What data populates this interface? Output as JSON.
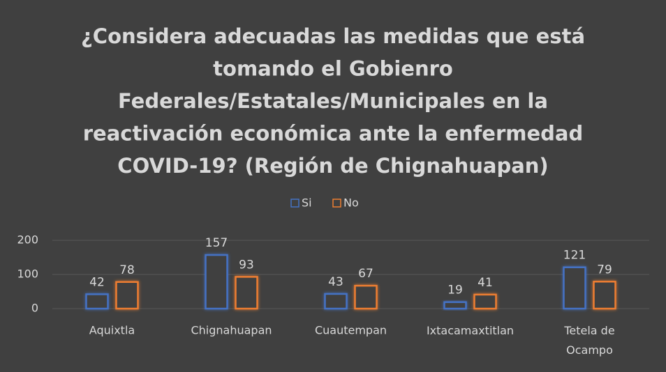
{
  "chart_data": {
    "type": "bar",
    "title": [
      "¿Considera adecuadas las medidas que está",
      "tomando el Gobienro",
      "Federales/Estatales/Municipales en la",
      "reactivación económica ante la enfermedad",
      "COVID-19? (Región de Chignahuapan)"
    ],
    "categories": [
      "Aquixtla",
      "Chignahuapan",
      "Cuautempan",
      "Ixtacamaxtitlan",
      "Tetela de Ocampo"
    ],
    "series": [
      {
        "name": "Si",
        "color": "#4472c4",
        "values": [
          42,
          157,
          43,
          19,
          121
        ]
      },
      {
        "name": "No",
        "color": "#ed7d31",
        "values": [
          78,
          93,
          67,
          41,
          79
        ]
      }
    ],
    "ylim": [
      0,
      200
    ],
    "yticks": [
      0,
      100,
      200
    ],
    "grid": true,
    "legend": "top"
  }
}
